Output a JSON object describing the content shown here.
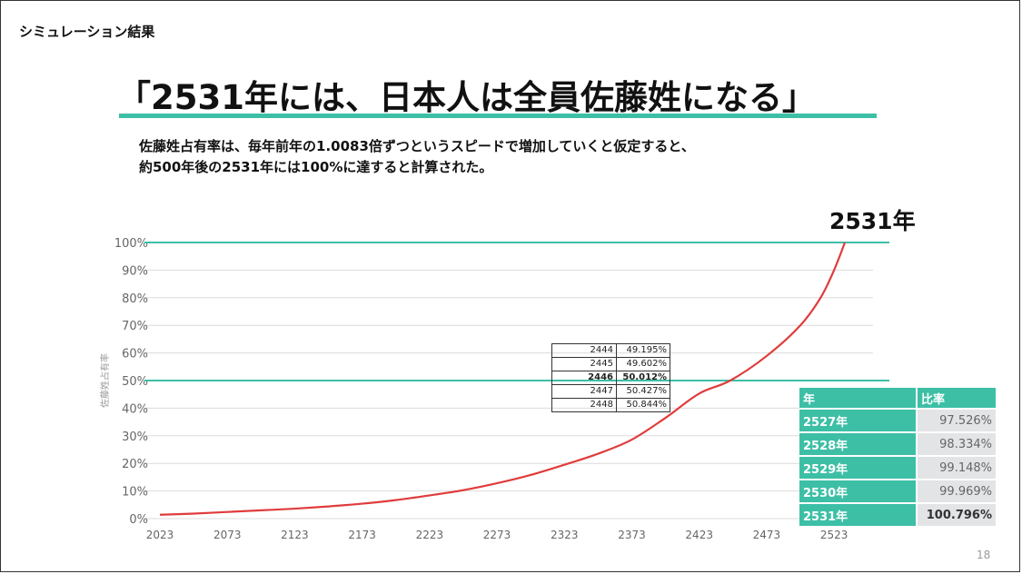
{
  "section_label": "シミュレーション結果",
  "title": "「2531年には、日本人は全員佐藤姓になる」",
  "description": [
    "佐藤姓占有率は、毎年前年の1.0083倍ずつというスピードで増加していくと仮定すると、",
    "約500年後の2531年には100%に達すると計算された。"
  ],
  "callout": "2531年",
  "page_number": "18",
  "chart_data": {
    "type": "line",
    "title": "",
    "xlabel": "",
    "ylabel": "佐藤姓占有率",
    "x_ticks": [
      "2023",
      "2073",
      "2123",
      "2173",
      "2223",
      "2273",
      "2323",
      "2373",
      "2423",
      "2473",
      "2523"
    ],
    "y_ticks": [
      "0%",
      "10%",
      "20%",
      "30%",
      "40%",
      "50%",
      "60%",
      "70%",
      "80%",
      "90%",
      "100%"
    ],
    "xlim": [
      2023,
      2531
    ],
    "ylim": [
      0,
      100
    ],
    "reference_lines": [
      50,
      100
    ],
    "line_color": "#e03c3c",
    "reference_color": "#3dbfa6",
    "series": [
      {
        "x": [
          2023,
          2048,
          2073,
          2098,
          2123,
          2148,
          2173,
          2198,
          2223,
          2248,
          2273,
          2298,
          2323,
          2348,
          2373,
          2398,
          2423,
          2446,
          2473,
          2498,
          2513,
          2523,
          2531
        ],
        "values": [
          1.4,
          1.8,
          2.4,
          3.0,
          3.6,
          4.4,
          5.4,
          6.7,
          8.4,
          10.3,
          12.8,
          15.8,
          19.5,
          23.5,
          28.6,
          36.5,
          45.3,
          50.0,
          58.9,
          70.0,
          80.0,
          90.0,
          100.0
        ]
      }
    ]
  },
  "detail_table": [
    {
      "year": "2444",
      "value": "49.195%"
    },
    {
      "year": "2445",
      "value": "49.602%"
    },
    {
      "year": "2446",
      "value": "50.012%",
      "highlight": true
    },
    {
      "year": "2447",
      "value": "50.427%"
    },
    {
      "year": "2448",
      "value": "50.844%"
    }
  ],
  "result_table": {
    "headers": [
      "年",
      "比率"
    ],
    "rows": [
      {
        "year": "2527年",
        "value": "97.526%"
      },
      {
        "year": "2528年",
        "value": "98.334%"
      },
      {
        "year": "2529年",
        "value": "99.148%"
      },
      {
        "year": "2530年",
        "value": "99.969%"
      },
      {
        "year": "2531年",
        "value": "100.796%"
      }
    ]
  },
  "colors": {
    "accent": "#3dbfa6",
    "line": "#e03c3c"
  }
}
